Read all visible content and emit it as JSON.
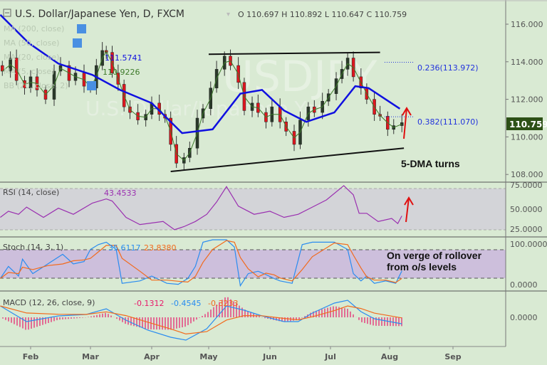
{
  "header": {
    "title": "U.S. Dollar/Japanese Yen, D, FXCM",
    "ohlc": "O 110.697  H 110.892  L 110.647  C 110.759",
    "watermark_symbol": "USDJPY",
    "watermark_name": "U.S. Dollar/Japanese Yen"
  },
  "legends": {
    "ma200": "MA (200, close)",
    "ma50": "MA (50, close)",
    "ma20": "MA (20, close)",
    "ma20_value": "111.5741",
    "ma5": "MA (5, close)",
    "ma5_value": "110.9226",
    "bb": "BB (20, close, 2)",
    "rsi": "RSI (14, close)",
    "rsi_value": "43.4533",
    "stoch": "Stoch (14, 3, 1)",
    "stoch_k_value": "35.6117",
    "stoch_d_value": "23.8380",
    "macd": "MACD (12, 26, close, 9)",
    "macd_hist_value": "-0.1312",
    "macd_value": "-0.4545",
    "macd_signal_value": "-0.3233"
  },
  "annotations": {
    "fib_236": "0.236(113.972)",
    "fib_382": "0.382(111.070)",
    "dma_note": "5-DMA turns",
    "stoch_note_1": "On verge of rollover",
    "stoch_note_2": "from o/s levels"
  },
  "axes": {
    "price_ticks": [
      "116.000",
      "114.000",
      "112.000",
      "110.000",
      "108.000"
    ],
    "last_price": "110.759",
    "rsi_ticks": [
      "75.0000",
      "50.0000",
      "25.0000"
    ],
    "stoch_ticks": [
      "100.0000",
      "0.0000"
    ],
    "macd_ticks": [
      "0.0000"
    ],
    "months": [
      "Feb",
      "Mar",
      "Apr",
      "May",
      "Jun",
      "Jul",
      "Aug",
      "Sep"
    ]
  },
  "colors": {
    "background": "#d9ead3",
    "candle_up": "#2a3a2a",
    "candle_down": "#e0161e",
    "ma50": "#1010e0",
    "ma5": "#3d7a2a",
    "rsi": "#9a2fb0",
    "stoch_k": "#2a8cf0",
    "stoch_d": "#f26a1c",
    "macd": "#2a8cf0",
    "signal": "#f26a1c",
    "histogram": "#e8196a",
    "arrow": "#e01010",
    "last_price_bg": "#2d5016"
  },
  "chart_data": {
    "type": "candlestick",
    "price": {
      "ylim": [
        107.6,
        117.0
      ],
      "closes": [
        [
          "Jan 18",
          113.5
        ],
        [
          "Jan 22",
          114.2
        ],
        [
          "Jan 25",
          113.0
        ],
        [
          "Jan 29",
          112.6
        ],
        [
          "Feb 1",
          113.2
        ],
        [
          "Feb 4",
          112.5
        ],
        [
          "Feb 8",
          112.0
        ],
        [
          "Feb 12",
          113.5
        ],
        [
          "Feb 15",
          113.8
        ],
        [
          "Feb 19",
          113.0
        ],
        [
          "Feb 22",
          113.4
        ],
        [
          "Feb 26",
          112.7
        ],
        [
          "Mar 1",
          112.6
        ],
        [
          "Mar 4",
          113.8
        ],
        [
          "Mar 7",
          114.6
        ],
        [
          "Mar 9",
          114.5
        ],
        [
          "Mar 12",
          113.4
        ],
        [
          "Mar 15",
          112.8
        ],
        [
          "Mar 18",
          111.6
        ],
        [
          "Mar 21",
          111.3
        ],
        [
          "Mar 25",
          110.9
        ],
        [
          "Mar 29",
          111.2
        ],
        [
          "Apr 1",
          111.8
        ],
        [
          "Apr 5",
          111.2
        ],
        [
          "Apr 8",
          111.0
        ],
        [
          "Apr 11",
          109.6
        ],
        [
          "Apr 14",
          108.6
        ],
        [
          "Apr 18",
          108.9
        ],
        [
          "Apr 21",
          109.4
        ],
        [
          "Apr 25",
          111.0
        ],
        [
          "Apr 28",
          111.5
        ],
        [
          "May 2",
          112.6
        ],
        [
          "May 5",
          113.6
        ],
        [
          "May 9",
          114.3
        ],
        [
          "May 12",
          113.8
        ],
        [
          "May 16",
          112.9
        ],
        [
          "May 19",
          111.4
        ],
        [
          "May 23",
          111.8
        ],
        [
          "May 26",
          111.3
        ],
        [
          "May 30",
          110.8
        ],
        [
          "Jun 2",
          111.6
        ],
        [
          "Jun 6",
          110.8
        ],
        [
          "Jun 9",
          110.3
        ],
        [
          "Jun 13",
          109.6
        ],
        [
          "Jun 16",
          110.9
        ],
        [
          "Jun 20",
          111.6
        ],
        [
          "Jun 23",
          111.3
        ],
        [
          "Jun 27",
          111.9
        ],
        [
          "Jun 30",
          112.3
        ],
        [
          "Jul 4",
          113.1
        ],
        [
          "Jul 7",
          113.6
        ],
        [
          "Jul 10",
          114.2
        ],
        [
          "Jul 13",
          113.2
        ],
        [
          "Jul 17",
          112.6
        ],
        [
          "Jul 20",
          112.0
        ],
        [
          "Jul 24",
          111.2
        ],
        [
          "Jul 27",
          111.1
        ],
        [
          "Jul 31",
          110.4
        ],
        [
          "Aug 3",
          110.6
        ],
        [
          "Aug 7",
          110.759
        ]
      ],
      "ma50": [
        [
          "Jan 17",
          116.5
        ],
        [
          "Jan 31",
          115.0
        ],
        [
          "Feb 14",
          113.9
        ],
        [
          "Mar 2",
          113.3
        ],
        [
          "Mar 16",
          112.5
        ],
        [
          "Apr 1",
          111.8
        ],
        [
          "Apr 17",
          110.2
        ],
        [
          "May 3",
          110.4
        ],
        [
          "May 17",
          112.3
        ],
        [
          "May 28",
          112.5
        ],
        [
          "Jun 8",
          111.4
        ],
        [
          "Jun 19",
          110.8
        ],
        [
          "Jul 3",
          111.3
        ],
        [
          "Jul 14",
          112.7
        ],
        [
          "Jul 21",
          112.6
        ],
        [
          "Aug 6",
          111.5
        ]
      ],
      "trendlines": [
        {
          "from": [
            "May 1",
            114.4
          ],
          "to": [
            "Jul 27",
            114.5
          ]
        },
        {
          "from": [
            "Apr 11",
            108.16
          ],
          "to": [
            "Aug 8",
            109.4
          ]
        }
      ],
      "fib_levels": [
        0.236,
        0.382
      ],
      "fib_prices": [
        113.972,
        111.07
      ]
    },
    "rsi": {
      "ylim": [
        25,
        75
      ],
      "bands": [
        30,
        70
      ],
      "values": [
        [
          "Jan 17",
          42
        ],
        [
          "Jan 21",
          48
        ],
        [
          "Jan 26",
          45
        ],
        [
          "Jan 30",
          52
        ],
        [
          "Feb 7",
          42
        ],
        [
          "Feb 14",
          51
        ],
        [
          "Feb 21",
          45
        ],
        [
          "Mar 2",
          56
        ],
        [
          "Mar 9",
          60
        ],
        [
          "Mar 12",
          58
        ],
        [
          "Mar 19",
          42
        ],
        [
          "Mar 26",
          35
        ],
        [
          "Apr 7",
          38
        ],
        [
          "Apr 13",
          30
        ],
        [
          "Apr 18",
          33
        ],
        [
          "Apr 24",
          38
        ],
        [
          "Apr 30",
          45
        ],
        [
          "May 5",
          57
        ],
        [
          "May 10",
          72
        ],
        [
          "May 16",
          53
        ],
        [
          "May 24",
          45
        ],
        [
          "Jun 1",
          48
        ],
        [
          "Jun 8",
          42
        ],
        [
          "Jun 15",
          45
        ],
        [
          "Jun 22",
          52
        ],
        [
          "Jun 29",
          59
        ],
        [
          "Jul 8",
          73
        ],
        [
          "Jul 13",
          64
        ],
        [
          "Jul 16",
          46
        ],
        [
          "Jul 20",
          46
        ],
        [
          "Jul 26",
          38
        ],
        [
          "Aug 2",
          41
        ],
        [
          "Aug 5",
          36
        ],
        [
          "Aug 7",
          43.4533
        ]
      ]
    },
    "stoch": {
      "ylim": [
        0,
        100
      ],
      "bands": [
        20,
        80
      ],
      "k": [
        [
          "Jan 17",
          20
        ],
        [
          "Jan 21",
          45
        ],
        [
          "Jan 26",
          25
        ],
        [
          "Jan 28",
          60
        ],
        [
          "Feb 2",
          30
        ],
        [
          "Feb 9",
          50
        ],
        [
          "Feb 16",
          70
        ],
        [
          "Feb 21",
          50
        ],
        [
          "Feb 26",
          55
        ],
        [
          "Mar 1",
          80
        ],
        [
          "Mar 5",
          90
        ],
        [
          "Mar 9",
          95
        ],
        [
          "Mar 14",
          80
        ],
        [
          "Mar 17",
          10
        ],
        [
          "Mar 26",
          15
        ],
        [
          "Apr 1",
          25
        ],
        [
          "Apr 9",
          10
        ],
        [
          "Apr 15",
          8
        ],
        [
          "Apr 20",
          20
        ],
        [
          "Apr 24",
          45
        ],
        [
          "Apr 28",
          95
        ],
        [
          "May 3",
          100
        ],
        [
          "May 10",
          100
        ],
        [
          "May 14",
          85
        ],
        [
          "May 17",
          5
        ],
        [
          "May 21",
          30
        ],
        [
          "May 26",
          35
        ],
        [
          "May 30",
          28
        ],
        [
          "Jun 3",
          20
        ],
        [
          "Jun 6",
          15
        ],
        [
          "Jun 12",
          10
        ],
        [
          "Jun 17",
          90
        ],
        [
          "Jun 22",
          95
        ],
        [
          "Jul 3",
          95
        ],
        [
          "Jul 10",
          80
        ],
        [
          "Jul 13",
          30
        ],
        [
          "Jul 17",
          15
        ],
        [
          "Jul 20",
          25
        ],
        [
          "Jul 24",
          10
        ],
        [
          "Jul 30",
          15
        ],
        [
          "Aug 4",
          10
        ],
        [
          "Aug 7",
          35.6117
        ]
      ]
    },
    "macd": {
      "ylim": [
        -2.0,
        2.2
      ],
      "values": [
        [
          "Jan 17",
          0.8
        ],
        [
          "Jan 30",
          -0.3
        ],
        [
          "Feb 14",
          0.1
        ],
        [
          "Feb 27",
          0.2
        ],
        [
          "Mar 9",
          0.6
        ],
        [
          "Mar 19",
          -0.2
        ],
        [
          "Mar 30",
          -0.9
        ],
        [
          "Apr 11",
          -1.4
        ],
        [
          "Apr 19",
          -1.6
        ],
        [
          "Apr 30",
          -0.8
        ],
        [
          "May 10",
          0.8
        ],
        [
          "May 19",
          0.5
        ],
        [
          "May 28",
          0.1
        ],
        [
          "Jun 8",
          -0.3
        ],
        [
          "Jun 15",
          -0.3
        ],
        [
          "Jun 22",
          0.3
        ],
        [
          "Jul 3",
          1.0
        ],
        [
          "Jul 10",
          1.2
        ],
        [
          "Jul 17",
          0.4
        ],
        [
          "Jul 24",
          -0.1
        ],
        [
          "Aug 7",
          -0.4545
        ]
      ]
    }
  }
}
